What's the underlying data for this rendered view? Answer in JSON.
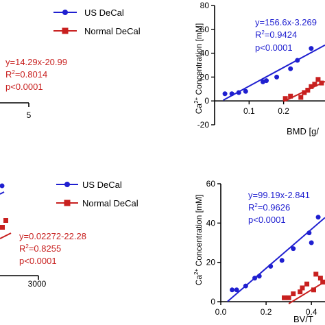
{
  "legend_top": {
    "us": "US DeCal",
    "normal": "Normal DeCal"
  },
  "legend_bottom": {
    "us": "US DeCal",
    "normal": "Normal DeCal"
  },
  "colors": {
    "us": "#1f1fd0",
    "normal": "#c8201f",
    "axis": "#000000"
  },
  "annotations": {
    "tl_normal": {
      "eq": "y=14.29x-20.99",
      "r2": "R",
      "r2val": "=0.8014",
      "p": "p<0.0001"
    },
    "tr_us": {
      "eq": "y=156.6x-3.269",
      "r2": "R",
      "r2val": "=0.9424",
      "p": "p<0.0001"
    },
    "bl_normal": {
      "eq": "y=0.02272-22.28",
      "r2": "R",
      "r2val": "=0.8255",
      "p": "p<0.0001"
    },
    "br_us": {
      "eq": "y=99.19x-2.841",
      "r2": "R",
      "r2val": "=0.9626",
      "p": "p<0.0001"
    },
    "sup2": "2"
  },
  "left_partial": {
    "tl_tick": "5",
    "bl_tick": "3000"
  },
  "chart_data": [
    {
      "type": "scatter",
      "panel": "top-right",
      "xlabel": "BMD [g/",
      "ylabel_main": "Ca",
      "ylabel_sup": "2+",
      "ylabel_rest": " Concentration [mM]",
      "xlim": [
        0.0,
        0.32
      ],
      "ylim": [
        -20,
        80
      ],
      "x_ticks": [
        0.1,
        0.2
      ],
      "x_tick_labels": [
        "0.1",
        "0.2"
      ],
      "y_ticks": [
        -20,
        0,
        20,
        40,
        60,
        80
      ],
      "y_tick_labels": [
        "-20",
        "0",
        "20",
        "40",
        "60",
        "80"
      ],
      "series": [
        {
          "name": "US DeCal",
          "x": [
            0.03,
            0.05,
            0.07,
            0.09,
            0.14,
            0.15,
            0.18,
            0.22,
            0.24,
            0.28
          ],
          "y": [
            6,
            6,
            7,
            8,
            16,
            17,
            20,
            27,
            34,
            44
          ],
          "fit": {
            "slope": 156.6,
            "intercept": -3.269,
            "x_range": [
              0.025,
              0.32
            ]
          }
        },
        {
          "name": "Normal DeCal",
          "x": [
            0.205,
            0.22,
            0.25,
            0.26,
            0.27,
            0.28,
            0.29,
            0.3,
            0.31
          ],
          "y": [
            2,
            4,
            3,
            7,
            9,
            12,
            14,
            18,
            15
          ],
          "fit": {
            "slope": 140,
            "intercept": -28.5,
            "x_range": [
              0.2,
              0.32
            ]
          }
        }
      ]
    },
    {
      "type": "scatter",
      "panel": "bottom-right",
      "xlabel": "BV/T",
      "ylabel_main": "Ca",
      "ylabel_sup": "2+",
      "ylabel_rest": " Concentration [mM]",
      "xlim": [
        0.0,
        0.46
      ],
      "ylim": [
        0,
        60
      ],
      "x_ticks": [
        0.0,
        0.2,
        0.4
      ],
      "x_tick_labels": [
        "0.0",
        "0.2",
        "0.4"
      ],
      "y_ticks": [
        0,
        20,
        40,
        60
      ],
      "y_tick_labels": [
        "0",
        "20",
        "40",
        "60"
      ],
      "series": [
        {
          "name": "US DeCal",
          "x": [
            0.05,
            0.07,
            0.11,
            0.15,
            0.17,
            0.22,
            0.27,
            0.32,
            0.39,
            0.4,
            0.43
          ],
          "y": [
            6,
            6,
            8,
            12,
            13,
            18,
            21,
            27,
            35,
            30,
            43
          ],
          "fit": {
            "slope": 99.19,
            "intercept": -2.841,
            "x_range": [
              0.03,
              0.46
            ]
          }
        },
        {
          "name": "Normal DeCal",
          "x": [
            0.28,
            0.3,
            0.32,
            0.35,
            0.36,
            0.38,
            0.41,
            0.42,
            0.44,
            0.45
          ],
          "y": [
            2,
            2,
            4,
            5,
            7,
            9,
            6,
            14,
            12,
            10
          ],
          "fit": {
            "slope": 70,
            "intercept": -22,
            "x_range": [
              0.3,
              0.46
            ]
          }
        }
      ]
    }
  ]
}
